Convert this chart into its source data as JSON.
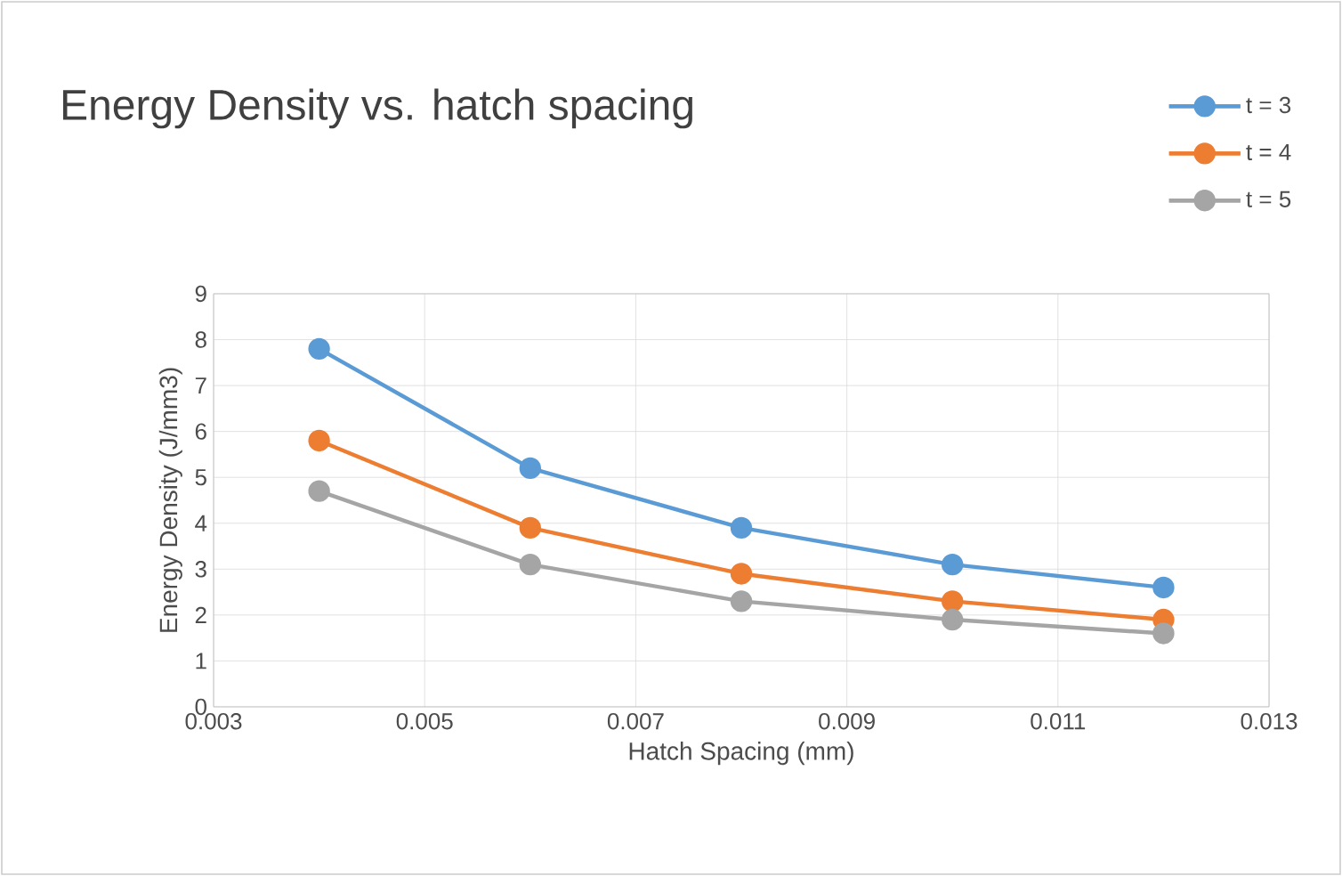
{
  "chart_data": {
    "type": "line",
    "title": "Energy Density vs. hatch spacing",
    "xlabel": "Hatch Spacing (mm)",
    "ylabel": "Energy Density (J/mm3)",
    "x": [
      0.004,
      0.006,
      0.008,
      0.01,
      0.012
    ],
    "series": [
      {
        "name": "t = 3",
        "color": "#5b9bd5",
        "values": [
          7.8,
          5.2,
          3.9,
          3.1,
          2.6
        ]
      },
      {
        "name": "t = 4",
        "color": "#ed7d31",
        "values": [
          5.8,
          3.9,
          2.9,
          2.3,
          1.9
        ]
      },
      {
        "name": "t = 5",
        "color": "#a5a5a5",
        "values": [
          4.7,
          3.1,
          2.3,
          1.9,
          1.6
        ]
      }
    ],
    "xlim": [
      0.003,
      0.013
    ],
    "xticks": [
      0.003,
      0.005,
      0.007,
      0.009,
      0.011,
      0.013
    ],
    "ylim": [
      0,
      9
    ],
    "yticks": [
      0,
      1,
      2,
      3,
      4,
      5,
      6,
      7,
      8,
      9
    ],
    "grid": true,
    "legend": "top right",
    "marker": "circle",
    "line_style": "solid"
  }
}
